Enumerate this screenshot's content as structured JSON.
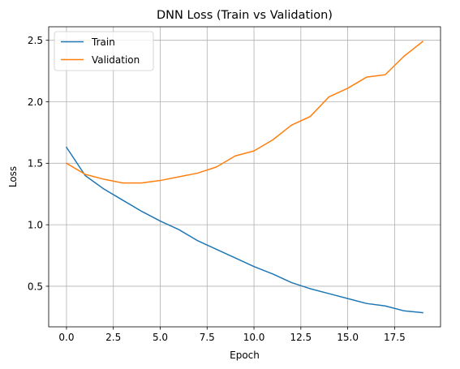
{
  "chart_data": {
    "type": "line",
    "title": "DNN Loss (Train vs Validation)",
    "xlabel": "Epoch",
    "ylabel": "Loss",
    "xlim": [
      -0.95,
      19.95
    ],
    "ylim": [
      0.17,
      2.61
    ],
    "xticks": [
      0.0,
      2.5,
      5.0,
      7.5,
      10.0,
      12.5,
      15.0,
      17.5
    ],
    "xtick_labels": [
      "0.0",
      "2.5",
      "5.0",
      "7.5",
      "10.0",
      "12.5",
      "15.0",
      "17.5"
    ],
    "yticks": [
      0.5,
      1.0,
      1.5,
      2.0,
      2.5
    ],
    "ytick_labels": [
      "0.5",
      "1.0",
      "1.5",
      "2.0",
      "2.5"
    ],
    "grid": true,
    "legend": {
      "placement": "top-left"
    },
    "x": [
      0,
      1,
      2,
      3,
      4,
      5,
      6,
      7,
      8,
      9,
      10,
      11,
      12,
      13,
      14,
      15,
      16,
      17,
      18,
      19
    ],
    "series": [
      {
        "name": "Train",
        "color": "#1f77b4",
        "values": [
          1.63,
          1.4,
          1.29,
          1.2,
          1.11,
          1.03,
          0.96,
          0.87,
          0.8,
          0.73,
          0.66,
          0.6,
          0.53,
          0.48,
          0.44,
          0.4,
          0.36,
          0.34,
          0.3,
          0.285
        ]
      },
      {
        "name": "Validation",
        "color": "#ff7f0e",
        "values": [
          1.5,
          1.41,
          1.37,
          1.34,
          1.34,
          1.36,
          1.39,
          1.42,
          1.47,
          1.56,
          1.6,
          1.69,
          1.81,
          1.88,
          2.04,
          2.11,
          2.2,
          2.22,
          2.37,
          2.49
        ]
      }
    ]
  }
}
